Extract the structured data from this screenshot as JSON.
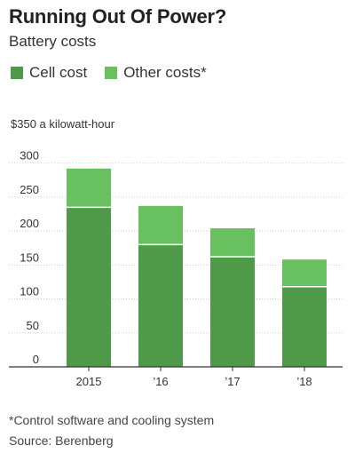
{
  "title": "Running Out Of Power?",
  "subtitle": "Battery costs",
  "footnote": "*Control software and cooling system",
  "source": "Source: Berenberg",
  "colors": {
    "cell": "#4f9a49",
    "other": "#69c05e",
    "grid": "#d0d0d0",
    "axis": "#333333"
  },
  "chart_data": {
    "type": "bar",
    "stacked": true,
    "categories": [
      "2015",
      "’16",
      "’17",
      "’18"
    ],
    "series": [
      {
        "name": "Cell cost",
        "values": [
          235,
          180,
          162,
          118
        ]
      },
      {
        "name": "Other costs*",
        "values": [
          57,
          57,
          42,
          40
        ]
      }
    ],
    "ylabel": "$350 a kilowatt-hour",
    "yticks": [
      "0",
      "50",
      "100",
      "150",
      "200",
      "250",
      "300"
    ],
    "ytick_values": [
      0,
      50,
      100,
      150,
      200,
      250,
      300
    ],
    "ylim": [
      0,
      350
    ],
    "grid": true,
    "legend": "top-left"
  }
}
